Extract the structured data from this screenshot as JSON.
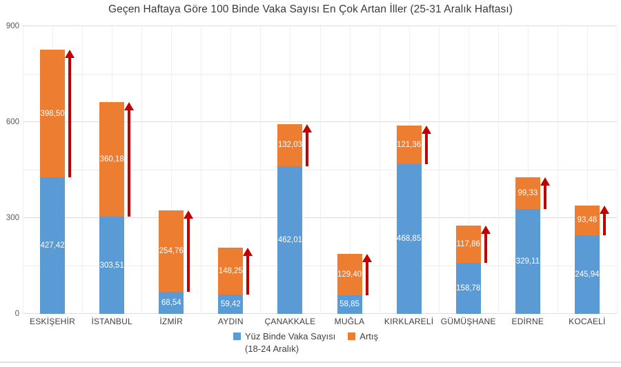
{
  "title": "Geçen Haftaya Göre 100 Binde Vaka Sayısı En Çok Artan İller (25-31 Aralık Haftası)",
  "legend": {
    "series1_label": "Yüz Binde Vaka Sayısı",
    "series1_sublabel": "(18-24 Aralık)",
    "series2_label": "Artış"
  },
  "colors": {
    "base_bar": "#5B9BD5",
    "increase_bar": "#ED7D31",
    "arrow": "#C00000",
    "value_text": "#ffffff"
  },
  "chart_data": {
    "type": "bar",
    "stacked": true,
    "title": "Geçen Haftaya Göre 100 Binde Vaka Sayısı En Çok Artan İller (25-31 Aralık Haftası)",
    "categories": [
      "ESKİŞEHİR",
      "İSTANBUL",
      "İZMİR",
      "AYDIN",
      "ÇANAKKALE",
      "MUĞLA",
      "KIRKLARELİ",
      "GÜMÜŞHANE",
      "EDİRNE",
      "KOCAELİ"
    ],
    "series": [
      {
        "name": "Yüz Binde Vaka Sayısı (18-24 Aralık)",
        "color": "#5B9BD5",
        "values": [
          427.42,
          303.51,
          68.54,
          59.42,
          462.01,
          58.85,
          468.85,
          158.78,
          329.11,
          245.94
        ],
        "labels": [
          "427,42",
          "303,51",
          "68,54",
          "59,42",
          "462,01",
          "58,85",
          "468,85",
          "158,78",
          "329,11",
          "245,94"
        ]
      },
      {
        "name": "Artış",
        "color": "#ED7D31",
        "values": [
          398.5,
          360.18,
          254.76,
          148.25,
          132.03,
          129.4,
          121.36,
          117.86,
          99.33,
          93.48
        ],
        "labels": [
          "398,50",
          "360,18",
          "254,76",
          "148,25",
          "132,03",
          "129,40",
          "121,36",
          "117,86",
          "99,33",
          "93,48"
        ]
      }
    ],
    "ylim": [
      0,
      900
    ],
    "yticks": [
      0,
      300,
      600,
      900
    ],
    "gridline_step": 150,
    "grid": true,
    "legend_position": "bottom",
    "annotation": "dark red upward arrow beside each Artış segment",
    "arrow_color": "#C00000"
  }
}
